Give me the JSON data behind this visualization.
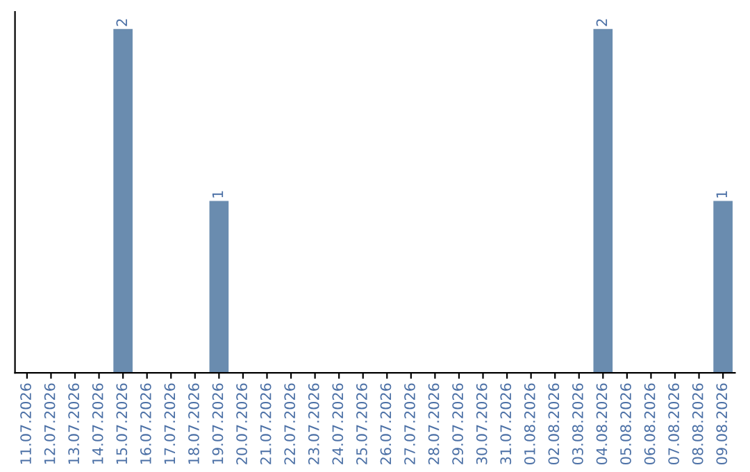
{
  "chart_data": {
    "type": "bar",
    "categories": [
      "11.07.2026",
      "12.07.2026",
      "13.07.2026",
      "14.07.2026",
      "15.07.2026",
      "16.07.2026",
      "17.07.2026",
      "18.07.2026",
      "19.07.2026",
      "20.07.2026",
      "21.07.2026",
      "22.07.2026",
      "23.07.2026",
      "24.07.2026",
      "25.07.2026",
      "26.07.2026",
      "27.07.2026",
      "28.07.2026",
      "29.07.2026",
      "30.07.2026",
      "31.07.2026",
      "01.08.2026",
      "02.08.2026",
      "03.08.2026",
      "04.08.2026",
      "05.08.2026",
      "06.08.2026",
      "07.08.2026",
      "08.08.2026",
      "09.08.2026"
    ],
    "values": [
      0,
      0,
      0,
      0,
      2,
      0,
      0,
      0,
      1,
      0,
      0,
      0,
      0,
      0,
      0,
      0,
      0,
      0,
      0,
      0,
      0,
      0,
      0,
      0,
      2,
      0,
      0,
      0,
      0,
      1
    ],
    "value_labels": [
      null,
      null,
      null,
      null,
      "2",
      null,
      null,
      null,
      "1",
      null,
      null,
      null,
      null,
      null,
      null,
      null,
      null,
      null,
      null,
      null,
      null,
      null,
      null,
      null,
      "2",
      null,
      null,
      null,
      null,
      "1"
    ],
    "color": "#6a8caf",
    "tick_labels": "x",
    "grid": false,
    "legend": false
  }
}
